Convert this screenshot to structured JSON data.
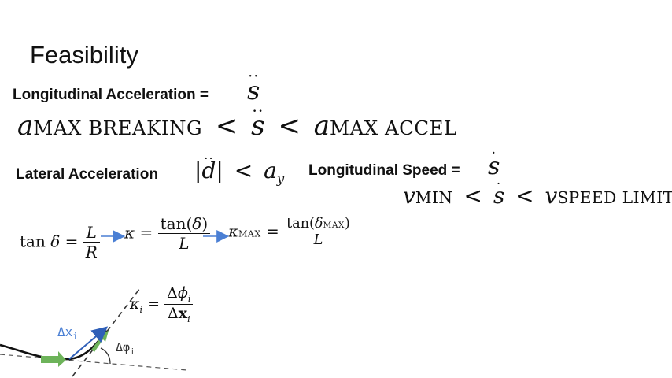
{
  "slide": {
    "title": "Feasibility",
    "long_accel_label": "Longitudinal Acceleration =",
    "long_accel_symbol": "s",
    "accel_min_sub": "MAX BREAKING",
    "accel_max_sub": "MAX ACCEL",
    "lat_accel_label": "Lateral Acceleration",
    "lat_accel_bound_sub": "y",
    "long_speed_label": "Longitudinal Speed =",
    "long_speed_symbol": "s",
    "speed_min_sub": "MIN",
    "speed_max_sub": "SPEED LIMIT",
    "curv_max_sub": "MAX",
    "delta_max_sub": "MAX",
    "diagram": {
      "dx_label": "Δx",
      "dx_sub": "i",
      "dphi_label": "Δφ",
      "dphi_sub": "i"
    },
    "colors": {
      "arrow_blue": "#4a7fd4",
      "arrow_green": "#6db35a"
    }
  }
}
